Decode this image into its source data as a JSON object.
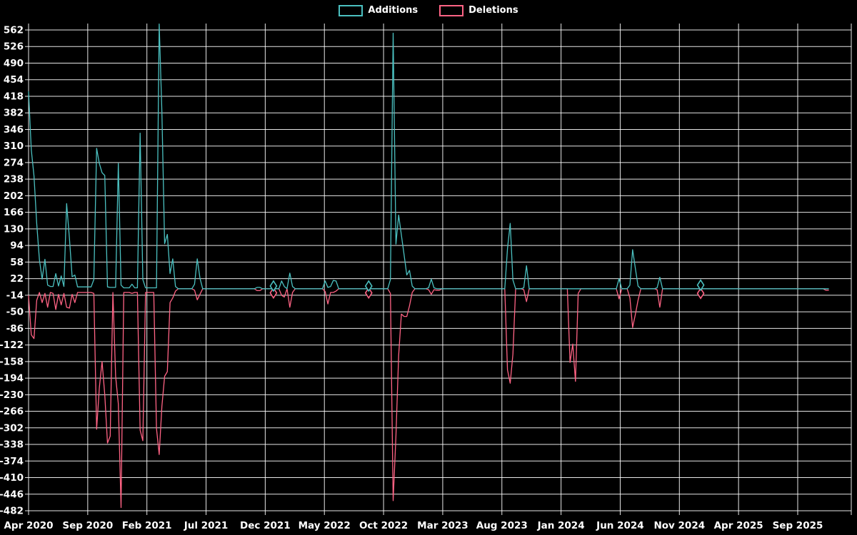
{
  "legend": {
    "items": [
      {
        "label": "Additions",
        "color": "#4BC0C0"
      },
      {
        "label": "Deletions",
        "color": "#FF6384"
      }
    ]
  },
  "chart_data": {
    "type": "line",
    "title": "",
    "x_unit": "week",
    "weeks_total": 295,
    "x_axis": {
      "tick_labels": [
        "Apr 2020",
        "Sep 2020",
        "Feb 2021",
        "Jul 2021",
        "Dec 2021",
        "May 2022",
        "Oct 2022",
        "Mar 2023",
        "Aug 2023",
        "Jan 2024",
        "Jun 2024",
        "Nov 2024",
        "Apr 2025",
        "Sep 2025"
      ],
      "months_per_tick": 5
    },
    "y_axis": {
      "ticks": [
        562,
        526,
        490,
        454,
        418,
        382,
        346,
        310,
        274,
        238,
        202,
        166,
        130,
        94,
        58,
        22,
        -14,
        -50,
        -86,
        -122,
        -158,
        -194,
        -230,
        -266,
        -302,
        -338,
        -374,
        -410,
        -446,
        -482
      ],
      "max": 562,
      "min": -482,
      "step": 36
    },
    "series": [
      {
        "name": "Additions",
        "color": "#4BC0C0",
        "default_value": 0,
        "points": {
          "0": 428,
          "1": 302,
          "2": 245,
          "3": 142,
          "4": 63,
          "5": 21,
          "6": 64,
          "7": 8,
          "8": 5,
          "9": 5,
          "10": 33,
          "11": 6,
          "12": 28,
          "13": 5,
          "14": 185,
          "15": 110,
          "16": 26,
          "17": 30,
          "18": 4,
          "19": 4,
          "20": 4,
          "21": 4,
          "22": 4,
          "23": 4,
          "24": 20,
          "25": 305,
          "26": 272,
          "27": 252,
          "28": 246,
          "29": 4,
          "30": 3,
          "31": 3,
          "32": 3,
          "33": 272,
          "34": 8,
          "35": 2,
          "36": 2,
          "37": 2,
          "38": 10,
          "39": 2,
          "40": 2,
          "41": 338,
          "42": 20,
          "43": 2,
          "44": 2,
          "45": 2,
          "46": 2,
          "47": 2,
          "48": 575,
          "49": 383,
          "50": 98,
          "51": 118,
          "52": 33,
          "53": 65,
          "54": 5,
          "61": 10,
          "62": 65,
          "63": 23,
          "84": 3,
          "85": 3,
          "93": 17,
          "94": 5,
          "96": 34,
          "97": 5,
          "109": 17,
          "110": 3,
          "111": 5,
          "112": 18,
          "113": 17,
          "133": 20,
          "134": 555,
          "135": 97,
          "136": 160,
          "137": 117,
          "138": 74,
          "139": 30,
          "140": 40,
          "141": 6,
          "147": 2,
          "148": 21,
          "149": 2,
          "176": 87,
          "177": 142,
          "178": 19,
          "182": 2,
          "183": 50,
          "217": 22,
          "221": 8,
          "222": 85,
          "223": 45,
          "224": 6,
          "231": 2,
          "232": 25
        }
      },
      {
        "name": "Deletions",
        "color": "#FF6384",
        "default_value": 0,
        "points": {
          "0": -15,
          "1": -100,
          "2": -108,
          "3": -25,
          "4": -8,
          "5": -30,
          "6": -10,
          "7": -40,
          "8": -8,
          "9": -10,
          "10": -45,
          "11": -12,
          "12": -35,
          "13": -10,
          "14": -40,
          "15": -42,
          "16": -12,
          "17": -30,
          "18": -8,
          "19": -8,
          "20": -8,
          "21": -8,
          "22": -8,
          "23": -8,
          "24": -10,
          "25": -305,
          "26": -215,
          "27": -158,
          "28": -230,
          "29": -335,
          "30": -320,
          "31": -8,
          "32": -190,
          "33": -250,
          "34": -475,
          "35": -8,
          "36": -8,
          "37": -8,
          "38": -10,
          "39": -8,
          "40": -8,
          "41": -307,
          "42": -330,
          "43": -8,
          "44": -8,
          "45": -8,
          "46": -8,
          "47": -303,
          "48": -360,
          "49": -255,
          "50": -190,
          "51": -180,
          "52": -30,
          "53": -20,
          "54": -5,
          "61": -3,
          "62": -24,
          "63": -12,
          "84": -4,
          "85": -4,
          "93": -14,
          "94": -18,
          "96": -40,
          "97": -8,
          "109": -6,
          "110": -33,
          "111": -8,
          "112": -8,
          "113": -5,
          "133": -10,
          "134": -460,
          "135": -320,
          "136": -145,
          "137": -55,
          "138": -60,
          "139": -60,
          "140": -37,
          "141": -8,
          "147": -2,
          "148": -12,
          "149": -2,
          "150": -3,
          "151": -3,
          "176": -176,
          "177": -205,
          "178": -142,
          "182": -2,
          "183": -28,
          "199": -160,
          "200": -120,
          "201": -201,
          "202": -10,
          "217": -22,
          "221": -20,
          "222": -84,
          "223": -56,
          "224": -25,
          "231": -2,
          "232": -40,
          "293": -3,
          "294": -3
        }
      }
    ],
    "isolated_markers": [
      {
        "week": 90,
        "additions": 6,
        "deletions": -9
      },
      {
        "week": 125,
        "additions": 6,
        "deletions": -9
      },
      {
        "week": 247,
        "additions": 8,
        "deletions": -10
      }
    ],
    "grid": true,
    "legend_position": "top",
    "background_color": "#000000",
    "gridline_color": "#ffffff",
    "text_color": "#ffffff"
  }
}
